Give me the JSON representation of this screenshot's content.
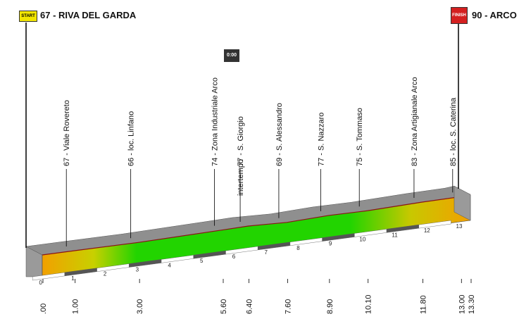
{
  "header": {
    "start_badge": "START",
    "start_title": "67 - RIVA DEL GARDA",
    "finish_badge": "FINISH",
    "finish_title": "90 - ARCO",
    "colors": {
      "start_badge": "#f2e600",
      "finish_badge": "#d42020"
    }
  },
  "timecheck": {
    "badge": "0:00",
    "label": "intertempo",
    "km": 6.4
  },
  "waypoints": [
    {
      "alt": 67,
      "name": "Viale Rovereto",
      "km": 1.0
    },
    {
      "alt": 66,
      "name": "loc. Linfano",
      "km": 3.0
    },
    {
      "alt": 74,
      "name": "Zona Industriale Arco",
      "km": 5.6
    },
    {
      "alt": 77,
      "name": "S. Giorgio",
      "km": 6.4
    },
    {
      "alt": 69,
      "name": "S. Alessandro",
      "km": 7.6
    },
    {
      "alt": 77,
      "name": "S. Nazzaro",
      "km": 8.9
    },
    {
      "alt": 75,
      "name": "S. Tommaso",
      "km": 10.1
    },
    {
      "alt": 83,
      "name": "Zona Artigianale Arco",
      "km": 11.8
    },
    {
      "alt": 85,
      "name": "loc. S. Caterina",
      "km": 13.0
    }
  ],
  "km_labels": [
    ".00",
    "1.00",
    "3.00",
    "5.60",
    "6.40",
    "7.60",
    "8.90",
    "10.10",
    "11.80",
    "13.00",
    "13.30"
  ],
  "km_ticks": [
    "0",
    "1",
    "2",
    "3",
    "4",
    "5",
    "6",
    "7",
    "8",
    "9",
    "10",
    "11",
    "12",
    "13"
  ],
  "total_km": 13.3,
  "colors": {
    "flat": "#f2a000",
    "green": "#12d400",
    "top": "#8a8a8a",
    "side": "#9c9c9c",
    "line": "#8a1414"
  }
}
